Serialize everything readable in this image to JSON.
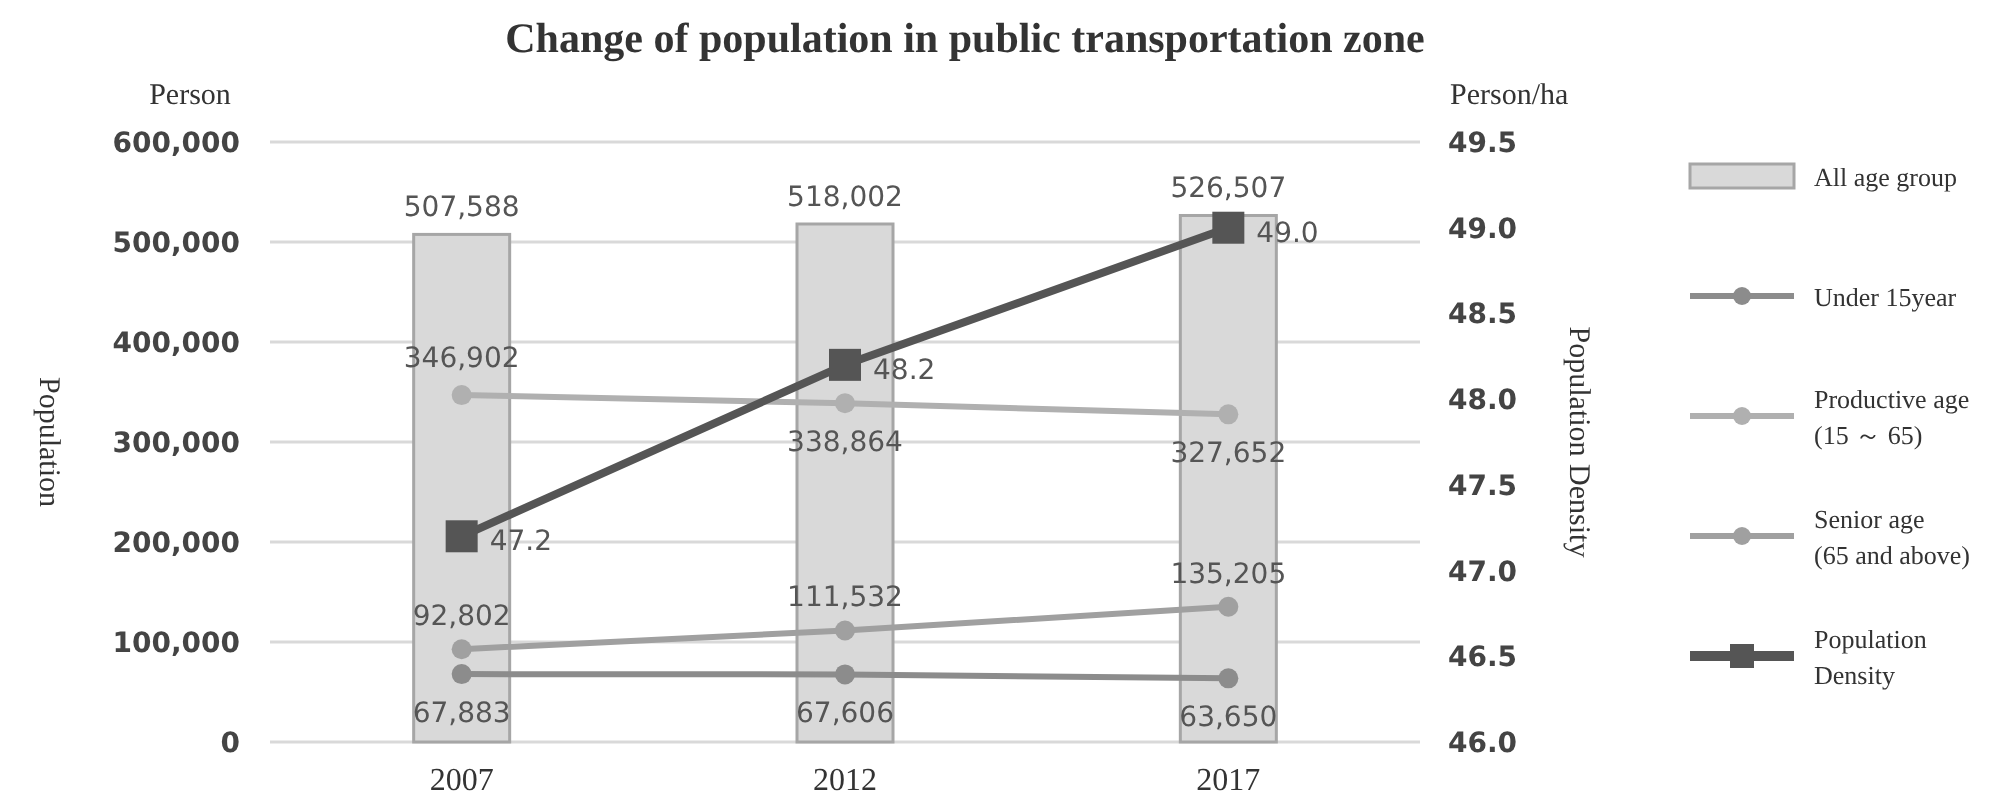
{
  "chart_data": {
    "type": "bar",
    "title": "Change of population in public transportation zone",
    "ylabel": "Population",
    "y2label": "Population Density",
    "annotations": [
      "Person",
      "Person/ha"
    ],
    "categories": [
      "2007",
      "2012",
      "2017"
    ],
    "series": [
      {
        "name": "All age group",
        "color": "#d9d9d9",
        "values": [
          507588,
          518002,
          526507
        ],
        "value_labels": [
          "507,588",
          "518,002",
          "526,507"
        ]
      },
      {
        "name": "Under 15year",
        "type": "line",
        "color": "#8c8c8c",
        "marker": "circle",
        "values": [
          67883,
          67606,
          63650
        ],
        "value_labels": [
          "67,883",
          "67,606",
          "63,650"
        ]
      },
      {
        "name": "Productive age (15 ～ 65)",
        "type": "line",
        "color": "#b0b0b0",
        "marker": "circle",
        "values": [
          346902,
          338864,
          327652
        ],
        "value_labels": [
          "346,902",
          "338,864",
          "327,652"
        ]
      },
      {
        "name": "Senior age (65 and above)",
        "type": "line",
        "color": "#a0a0a0",
        "marker": "circle",
        "values": [
          92802,
          111532,
          135205
        ],
        "value_labels": [
          "92,802",
          "111,532",
          "135,205"
        ]
      },
      {
        "name": "Population Density",
        "type": "line",
        "color": "#555555",
        "marker": "square",
        "axis": "y2",
        "values": [
          47.2,
          48.2,
          49.0
        ],
        "value_labels": [
          "47.2",
          "48.2",
          "49.0"
        ]
      }
    ],
    "ylim": [
      0,
      600000
    ],
    "yticks": [
      {
        "value": 0,
        "label": "0"
      },
      {
        "value": 100000,
        "label": "100,000"
      },
      {
        "value": 200000,
        "label": "200,000"
      },
      {
        "value": 300000,
        "label": "300,000"
      },
      {
        "value": 400000,
        "label": "400,000"
      },
      {
        "value": 500000,
        "label": "500,000"
      },
      {
        "value": 600000,
        "label": "600,000"
      }
    ],
    "y2lim": [
      46,
      49.5
    ],
    "y2ticks": [
      {
        "value": 46,
        "label": "46.0"
      },
      {
        "value": 46.5,
        "label": "46.5"
      },
      {
        "value": 47,
        "label": "47.0"
      },
      {
        "value": 47.5,
        "label": "47.5"
      },
      {
        "value": 48,
        "label": "48.0"
      },
      {
        "value": 48.5,
        "label": "48.5"
      },
      {
        "value": 49,
        "label": "49.0"
      },
      {
        "value": 49.5,
        "label": "49.5"
      }
    ],
    "grid": "y",
    "legend": "right"
  }
}
